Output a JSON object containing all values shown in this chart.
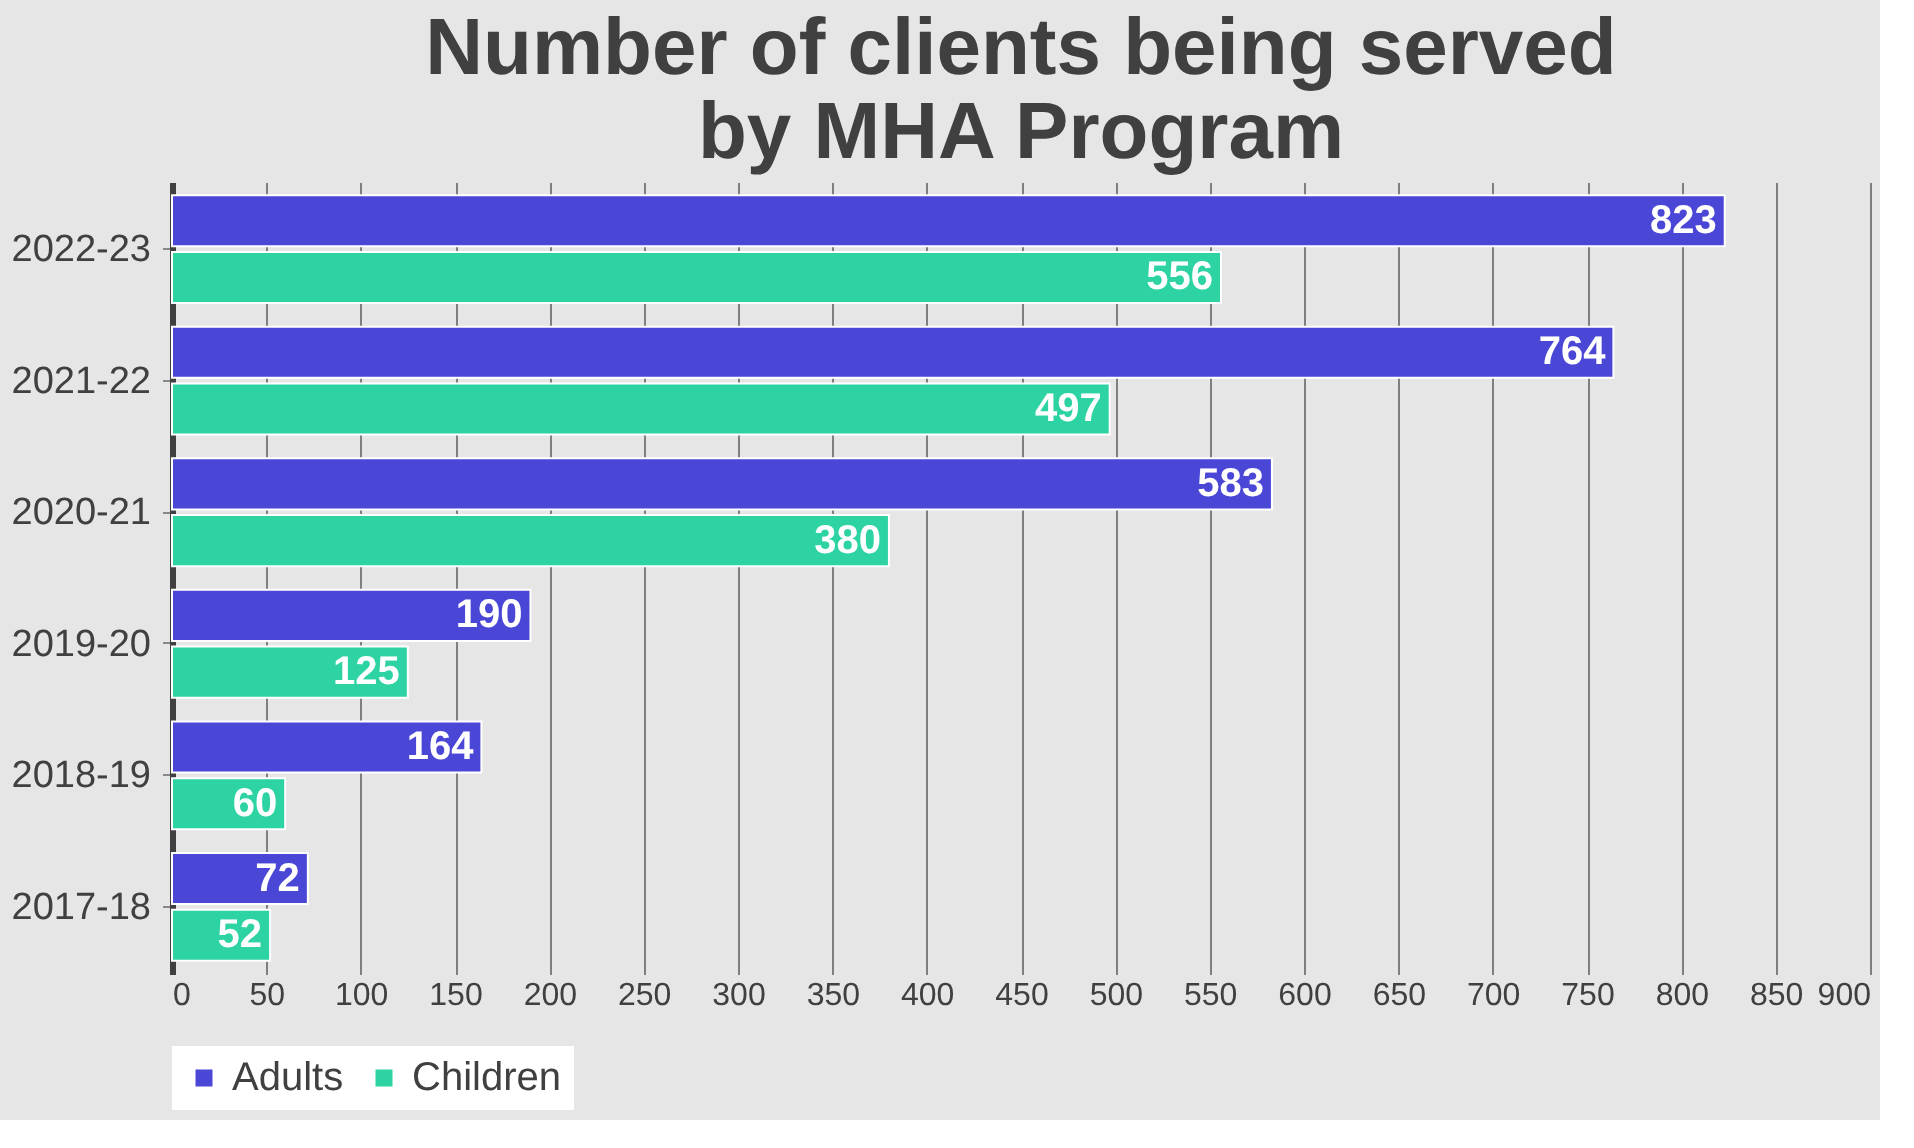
{
  "chart_data": {
    "type": "bar",
    "orientation": "horizontal",
    "title": "Number of clients being served by MHA Program",
    "categories": [
      "2022-23",
      "2021-22",
      "2020-21",
      "2019-20",
      "2018-19",
      "2017-18"
    ],
    "series": [
      {
        "name": "Adults",
        "color": "#4b47d6",
        "values": [
          823,
          764,
          583,
          190,
          164,
          72
        ]
      },
      {
        "name": "Children",
        "color": "#2ed3a4",
        "values": [
          556,
          497,
          380,
          125,
          60,
          52
        ]
      }
    ],
    "xlim": [
      0,
      900
    ],
    "xticks": [
      0,
      50,
      100,
      150,
      200,
      250,
      300,
      350,
      400,
      450,
      500,
      550,
      600,
      650,
      700,
      750,
      800,
      850,
      900
    ],
    "grid": "x",
    "legend": "bottom",
    "data_labels": true
  }
}
